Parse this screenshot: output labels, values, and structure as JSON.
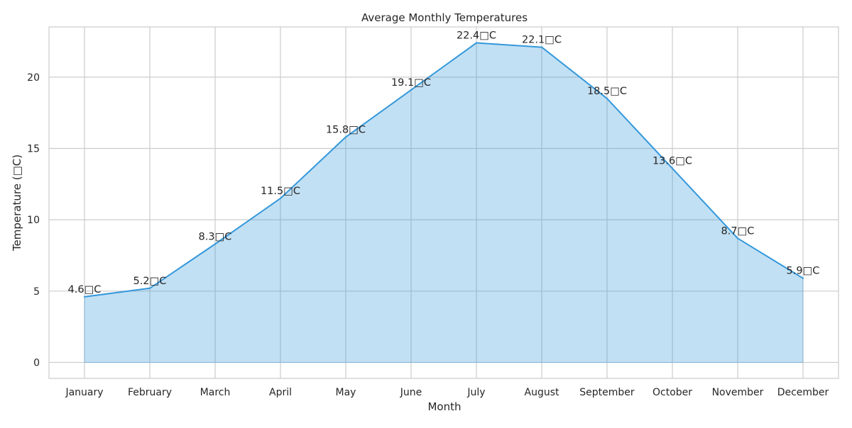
{
  "chart_data": {
    "type": "area",
    "title": "Average Monthly Temperatures",
    "xlabel": "Month",
    "ylabel": "Temperature (□C)",
    "categories": [
      "January",
      "February",
      "March",
      "April",
      "May",
      "June",
      "July",
      "August",
      "September",
      "October",
      "November",
      "December"
    ],
    "values": [
      4.6,
      5.2,
      8.3,
      11.5,
      15.8,
      19.1,
      22.4,
      22.1,
      18.5,
      13.6,
      8.7,
      5.9
    ],
    "data_labels": [
      "4.6□C",
      "5.2□C",
      "8.3□C",
      "11.5□C",
      "15.8□C",
      "19.1□C",
      "22.4□C",
      "22.1□C",
      "18.5□C",
      "13.6□C",
      "8.7□C",
      "5.9□C"
    ],
    "y_ticks": [
      0,
      5,
      10,
      15,
      20
    ],
    "ylim": [
      -1.12,
      23.52
    ],
    "grid": true,
    "colors": {
      "line": "#3498db",
      "fill": "#3498db",
      "grid": "#cccccc",
      "frame": "#cccccc"
    }
  }
}
